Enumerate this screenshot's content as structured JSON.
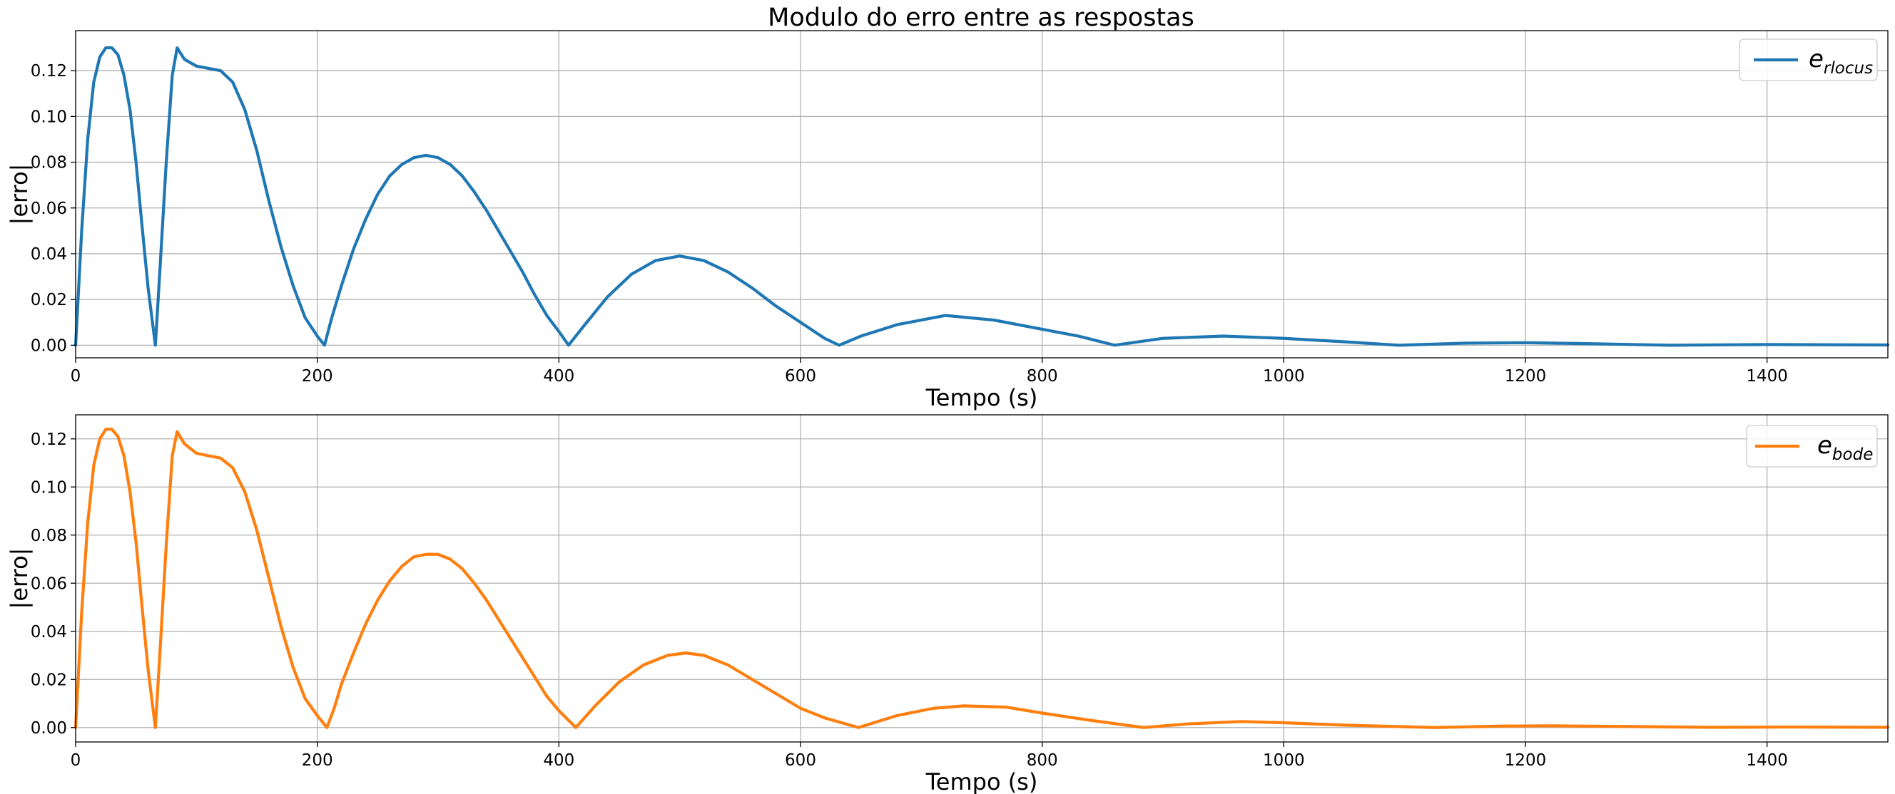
{
  "figure": {
    "title": "Modulo do erro entre as respostas"
  },
  "chart_data": [
    {
      "type": "line",
      "title": "Modulo do erro entre as respostas",
      "xlabel": "Tempo (s)",
      "ylabel": "|erro|",
      "xlim": [
        0,
        1500
      ],
      "ylim": [
        -0.0055,
        0.1375
      ],
      "xticks": [
        0,
        200,
        400,
        600,
        800,
        1000,
        1200,
        1400
      ],
      "yticks": [
        0.0,
        0.02,
        0.04,
        0.06,
        0.08,
        0.1,
        0.12
      ],
      "xtick_labels": [
        "0",
        "200",
        "400",
        "600",
        "800",
        "1000",
        "1200",
        "1400"
      ],
      "ytick_labels": [
        "0.00",
        "0.02",
        "0.04",
        "0.06",
        "0.08",
        "0.10",
        "0.12"
      ],
      "grid": true,
      "legend_position": "top-right",
      "series": [
        {
          "legend_main": "e",
          "legend_sub": "rlocus",
          "color": "#1f77b4",
          "x": [
            0,
            5,
            10,
            15,
            20,
            25,
            30,
            35,
            40,
            45,
            50,
            55,
            60,
            66,
            70,
            75,
            80,
            84,
            90,
            100,
            110,
            120,
            130,
            140,
            150,
            160,
            170,
            180,
            190,
            200,
            206,
            212,
            220,
            230,
            240,
            250,
            260,
            270,
            280,
            290,
            300,
            310,
            320,
            330,
            340,
            350,
            360,
            370,
            380,
            390,
            400,
            408,
            420,
            440,
            460,
            480,
            500,
            520,
            540,
            560,
            580,
            600,
            620,
            632,
            650,
            680,
            720,
            760,
            800,
            830,
            860,
            900,
            950,
            1000,
            1050,
            1095,
            1150,
            1200,
            1250,
            1320,
            1400,
            1500
          ],
          "y": [
            0.0,
            0.05,
            0.09,
            0.115,
            0.126,
            0.13,
            0.13,
            0.127,
            0.118,
            0.103,
            0.08,
            0.052,
            0.025,
            0.0,
            0.035,
            0.08,
            0.118,
            0.13,
            0.125,
            0.122,
            0.121,
            0.12,
            0.115,
            0.103,
            0.085,
            0.063,
            0.043,
            0.026,
            0.012,
            0.004,
            0.0,
            0.012,
            0.026,
            0.042,
            0.055,
            0.066,
            0.074,
            0.079,
            0.082,
            0.083,
            0.082,
            0.079,
            0.074,
            0.067,
            0.059,
            0.05,
            0.041,
            0.032,
            0.022,
            0.013,
            0.006,
            0.0,
            0.008,
            0.021,
            0.031,
            0.037,
            0.039,
            0.037,
            0.032,
            0.025,
            0.017,
            0.01,
            0.003,
            0.0,
            0.004,
            0.009,
            0.013,
            0.011,
            0.007,
            0.004,
            0.0,
            0.003,
            0.004,
            0.003,
            0.0015,
            0.0,
            0.0009,
            0.0011,
            0.0007,
            0.0,
            0.0003,
            0.0001
          ]
        }
      ]
    },
    {
      "type": "line",
      "xlabel": "Tempo (s)",
      "ylabel": "|erro|",
      "xlim": [
        0,
        1500
      ],
      "ylim": [
        -0.006,
        0.13
      ],
      "xticks": [
        0,
        200,
        400,
        600,
        800,
        1000,
        1200,
        1400
      ],
      "yticks": [
        0.0,
        0.02,
        0.04,
        0.06,
        0.08,
        0.1,
        0.12
      ],
      "xtick_labels": [
        "0",
        "200",
        "400",
        "600",
        "800",
        "1000",
        "1200",
        "1400"
      ],
      "ytick_labels": [
        "0.00",
        "0.02",
        "0.04",
        "0.06",
        "0.08",
        "0.10",
        "0.12"
      ],
      "grid": true,
      "legend_position": "top-right",
      "series": [
        {
          "legend_main": "e",
          "legend_sub": "bode",
          "color": "#ff7f0e",
          "x": [
            0,
            5,
            10,
            15,
            20,
            25,
            30,
            35,
            40,
            45,
            50,
            55,
            60,
            66,
            70,
            75,
            80,
            84,
            90,
            100,
            110,
            120,
            130,
            140,
            150,
            160,
            170,
            180,
            190,
            200,
            208,
            214,
            220,
            230,
            240,
            250,
            260,
            270,
            280,
            290,
            300,
            310,
            320,
            330,
            340,
            350,
            360,
            370,
            380,
            390,
            400,
            414,
            430,
            450,
            470,
            490,
            505,
            520,
            540,
            560,
            580,
            600,
            620,
            648,
            680,
            710,
            735,
            770,
            800,
            840,
            884,
            920,
            965,
            1000,
            1050,
            1125,
            1180,
            1220,
            1270,
            1350,
            1420,
            1500
          ],
          "y": [
            0.0,
            0.048,
            0.085,
            0.109,
            0.12,
            0.124,
            0.124,
            0.121,
            0.113,
            0.098,
            0.077,
            0.05,
            0.024,
            0.0,
            0.033,
            0.076,
            0.113,
            0.123,
            0.118,
            0.114,
            0.113,
            0.112,
            0.108,
            0.098,
            0.082,
            0.062,
            0.042,
            0.025,
            0.012,
            0.005,
            0.0,
            0.008,
            0.018,
            0.031,
            0.043,
            0.053,
            0.061,
            0.067,
            0.071,
            0.072,
            0.072,
            0.07,
            0.066,
            0.06,
            0.053,
            0.045,
            0.037,
            0.029,
            0.021,
            0.013,
            0.007,
            0.0,
            0.009,
            0.019,
            0.026,
            0.03,
            0.031,
            0.03,
            0.026,
            0.02,
            0.014,
            0.008,
            0.004,
            0.0,
            0.005,
            0.008,
            0.009,
            0.0085,
            0.006,
            0.003,
            0.0,
            0.0015,
            0.0025,
            0.002,
            0.001,
            0.0,
            0.0006,
            0.0007,
            0.0005,
            0.0001,
            0.0002,
            0.0001
          ]
        }
      ]
    }
  ]
}
